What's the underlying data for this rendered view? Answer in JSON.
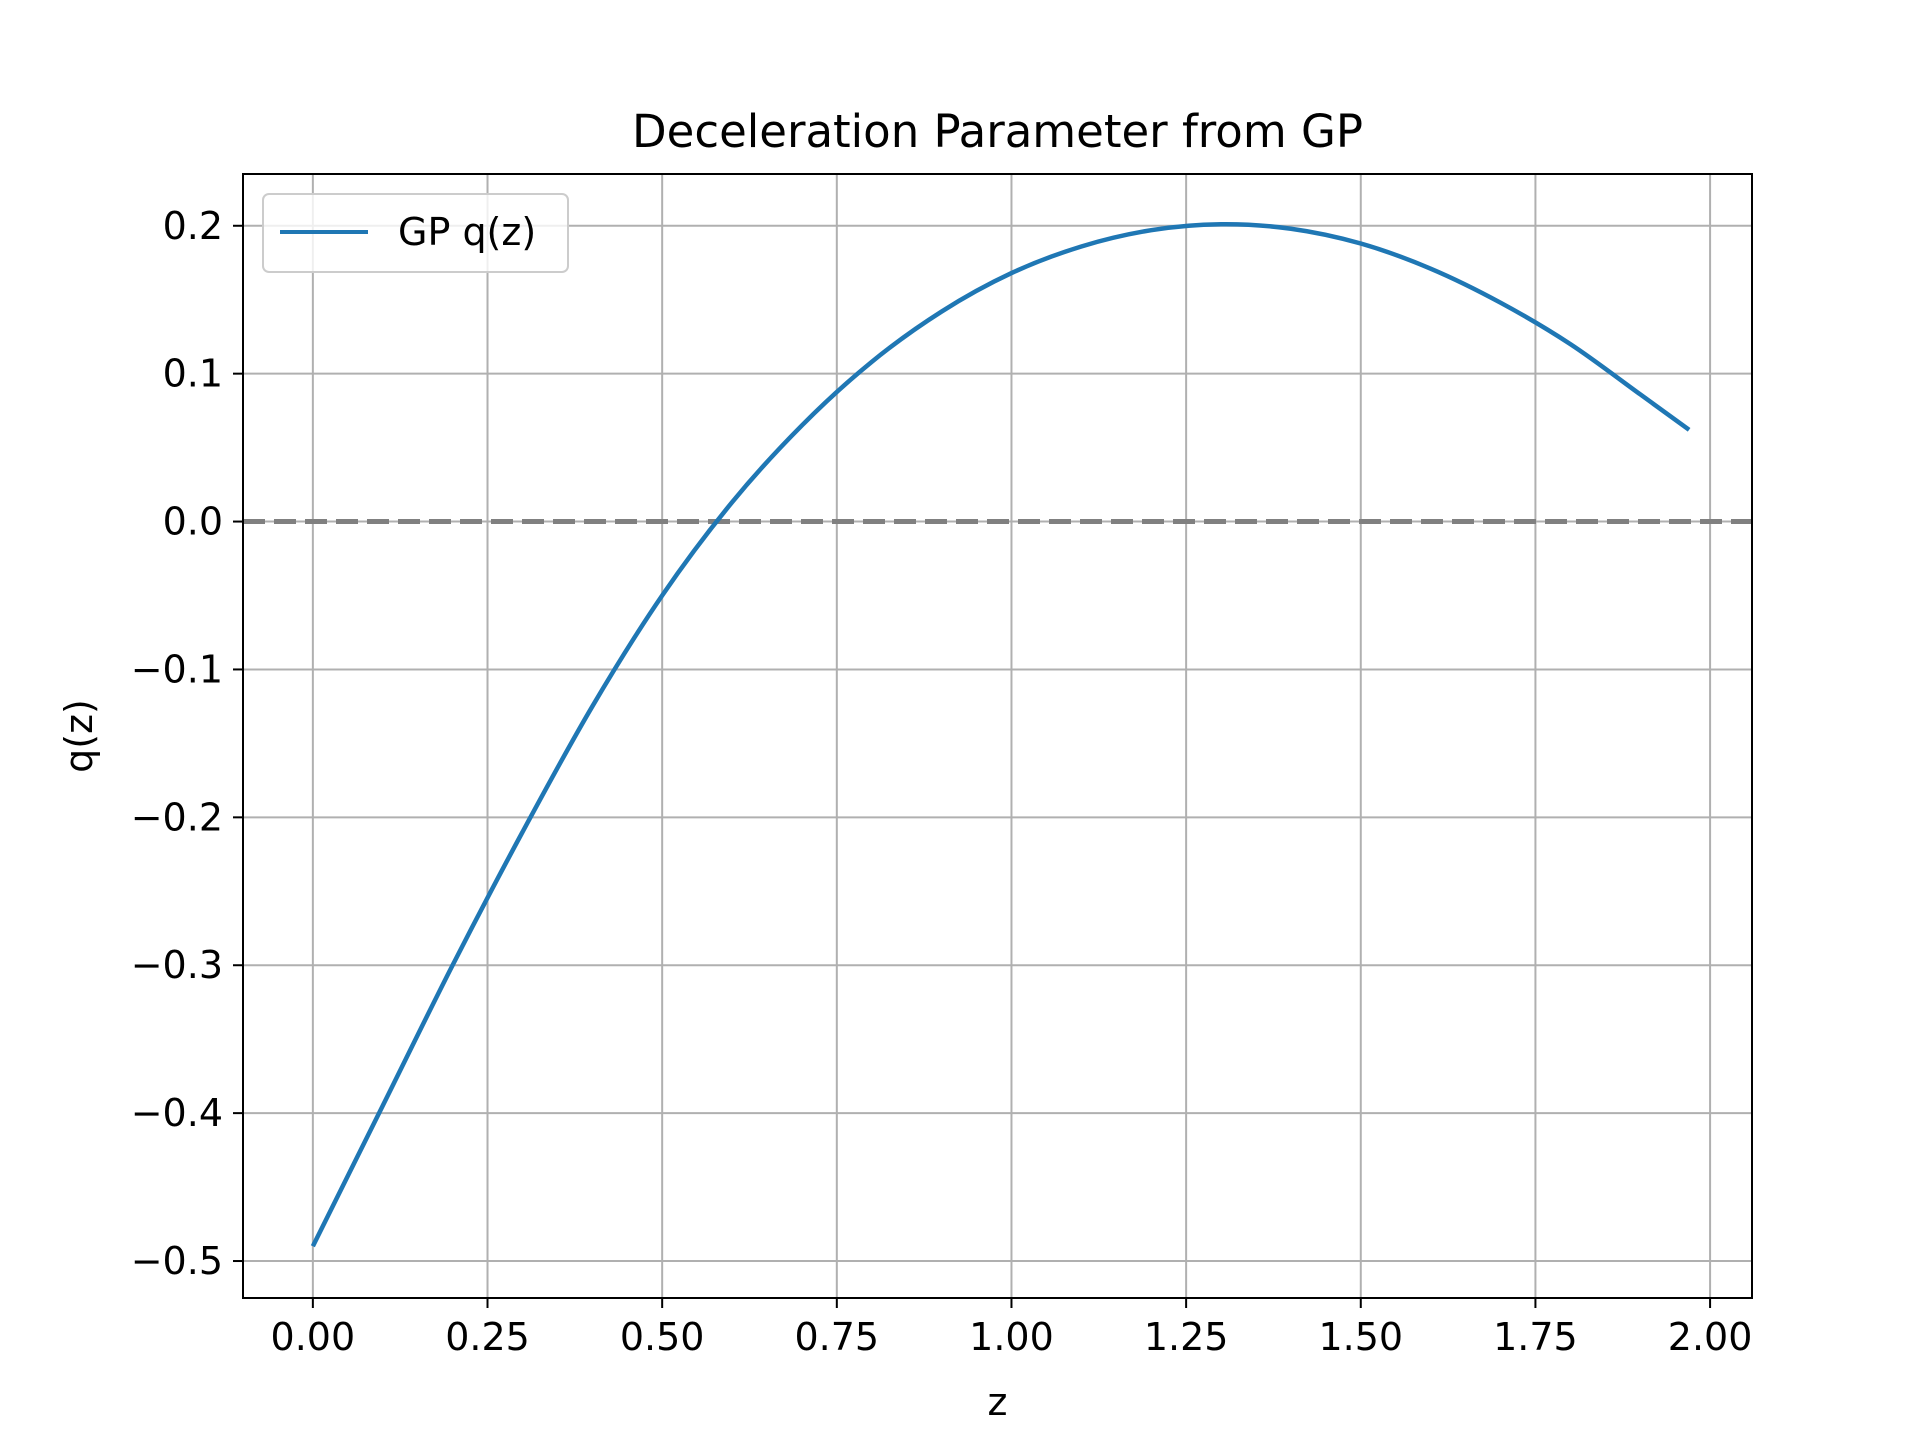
{
  "chart_data": {
    "type": "line",
    "title": "Deceleration Parameter from GP",
    "xlabel": "z",
    "ylabel": "q(z)",
    "xlim": [
      -0.1,
      2.06
    ],
    "ylim": [
      -0.525,
      0.235
    ],
    "xticks": [
      0.0,
      0.25,
      0.5,
      0.75,
      1.0,
      1.25,
      1.5,
      1.75,
      2.0
    ],
    "xtick_labels": [
      "0.00",
      "0.25",
      "0.50",
      "0.75",
      "1.00",
      "1.25",
      "1.50",
      "1.75",
      "2.00"
    ],
    "yticks": [
      -0.5,
      -0.4,
      -0.3,
      -0.2,
      -0.1,
      0.0,
      0.1,
      0.2
    ],
    "ytick_labels": [
      "−0.5",
      "−0.4",
      "−0.3",
      "−0.2",
      "−0.1",
      "0.0",
      "0.1",
      "0.2"
    ],
    "grid": true,
    "legend_position": "upper-left",
    "reference_line": {
      "y": 0.0,
      "style": "dashed",
      "color": "#808080"
    },
    "series": [
      {
        "name": "GP q(z)",
        "color": "#1f77b4",
        "x": [
          0.0,
          0.1,
          0.2,
          0.3,
          0.4,
          0.5,
          0.6,
          0.7,
          0.8,
          0.9,
          1.0,
          1.1,
          1.2,
          1.3,
          1.4,
          1.5,
          1.6,
          1.7,
          1.8,
          1.9,
          1.97
        ],
        "y": [
          -0.49,
          -0.395,
          -0.3,
          -0.21,
          -0.125,
          -0.05,
          0.013,
          0.065,
          0.108,
          0.142,
          0.168,
          0.186,
          0.197,
          0.201,
          0.198,
          0.188,
          0.171,
          0.148,
          0.12,
          0.086,
          0.062
        ]
      }
    ]
  }
}
